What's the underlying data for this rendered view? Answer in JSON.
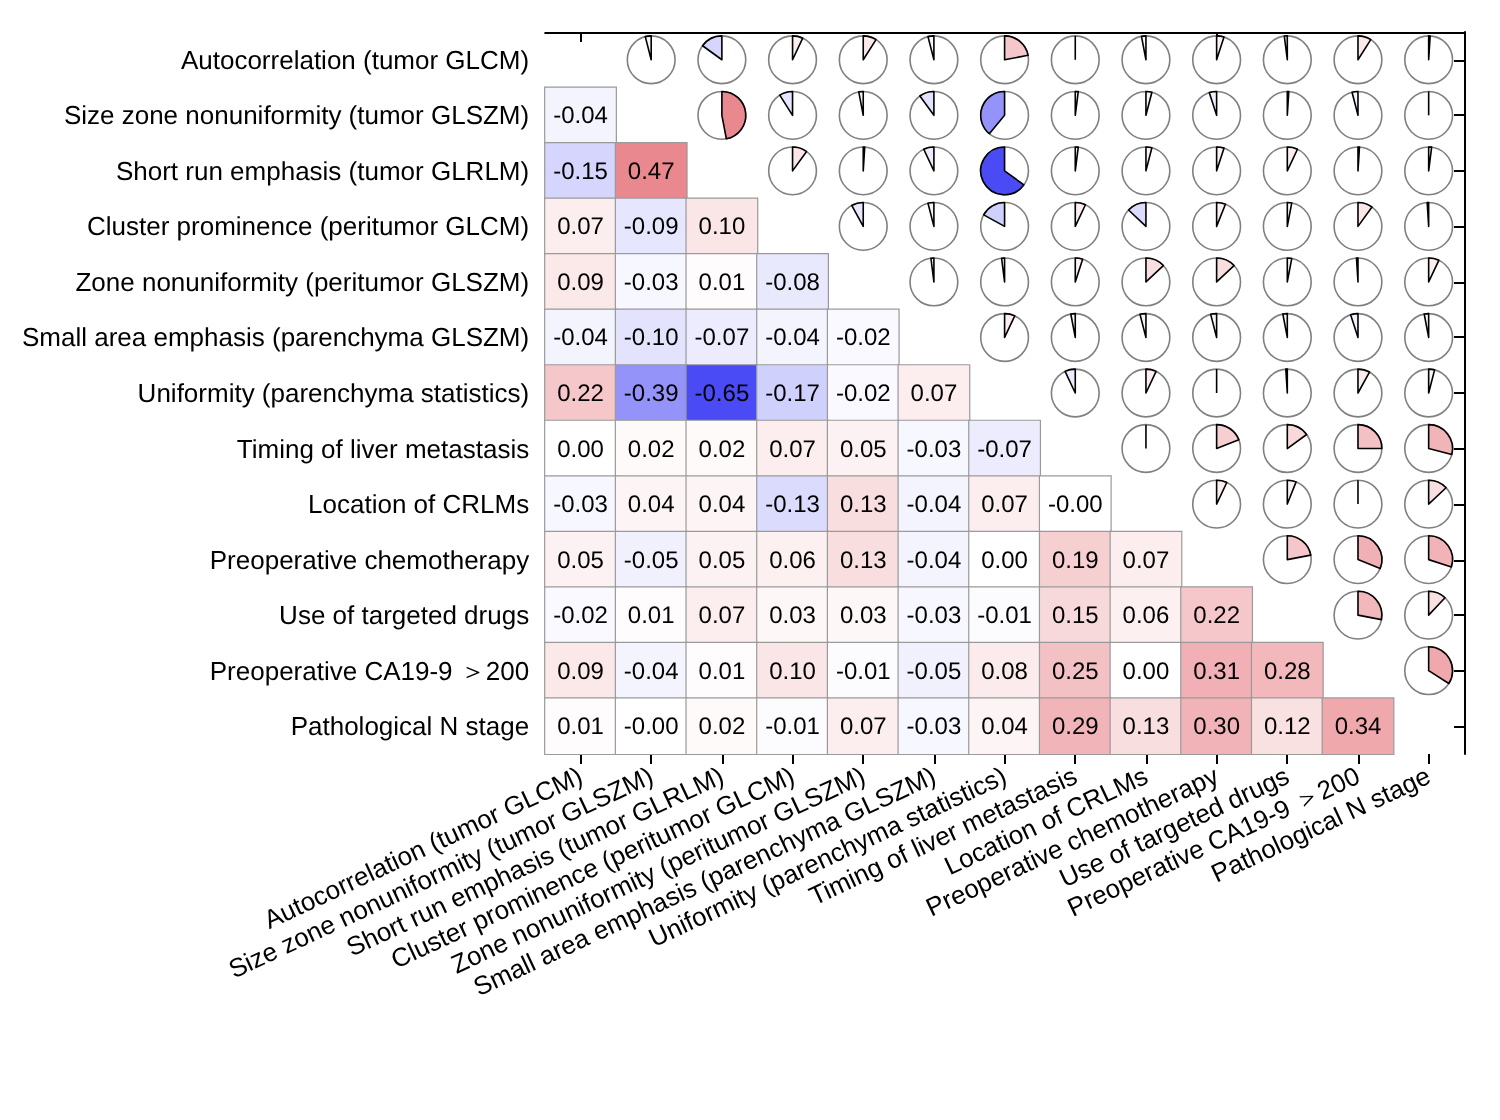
{
  "chart_data": {
    "type": "heatmap",
    "categories": [
      "Autocorrelation (tumor GLCM)",
      "Size zone nonuniformity (tumor GLSZM)",
      "Short run emphasis (tumor GLRLM)",
      "Cluster prominence (peritumor GLCM)",
      "Zone nonuniformity (peritumor GLSZM)",
      "Small area emphasis (parenchyma GLSZM)",
      "Uniformity (parenchyma statistics)",
      "Timing of liver metastasis",
      "Location of CRLMs",
      "Preoperative chemotherapy",
      "Use of targeted drugs",
      "Preoperative CA19-9 ＞200",
      "Pathological N stage"
    ],
    "y_categories": [
      "Autocorrelation (tumor GLCM)",
      "Size zone nonuniformity (tumor GLSZM)",
      "Short run emphasis (tumor GLRLM)",
      "Cluster prominence (peritumor GLCM)",
      "Zone nonuniformity (peritumor GLSZM)",
      "Small area emphasis (parenchyma GLSZM)",
      "Uniformity (parenchyma statistics)",
      "Timing of liver metastasis",
      "Location of CRLMs",
      "Preoperative chemotherapy",
      "Use of targeted drugs",
      "Preoperative CA19-9 ＞200",
      "Pathological N stage"
    ],
    "colors": [
      "#4b4bf5",
      "#ffffff",
      "#e05a63"
    ],
    "cells": [
      [
        null,
        null,
        null,
        null,
        null,
        null,
        null,
        null,
        null,
        null,
        null,
        null,
        null
      ],
      [
        -0.04,
        null,
        null,
        null,
        null,
        null,
        null,
        null,
        null,
        null,
        null,
        null,
        null
      ],
      [
        -0.15,
        0.47,
        null,
        null,
        null,
        null,
        null,
        null,
        null,
        null,
        null,
        null,
        null
      ],
      [
        0.07,
        -0.09,
        0.1,
        null,
        null,
        null,
        null,
        null,
        null,
        null,
        null,
        null,
        null
      ],
      [
        0.09,
        -0.03,
        0.01,
        -0.08,
        null,
        null,
        null,
        null,
        null,
        null,
        null,
        null,
        null
      ],
      [
        -0.04,
        -0.1,
        -0.07,
        -0.04,
        -0.02,
        null,
        null,
        null,
        null,
        null,
        null,
        null,
        null
      ],
      [
        0.22,
        -0.39,
        -0.65,
        -0.17,
        -0.02,
        0.07,
        null,
        null,
        null,
        null,
        null,
        null,
        null
      ],
      [
        0.0,
        0.02,
        0.02,
        0.07,
        0.05,
        -0.03,
        -0.07,
        null,
        null,
        null,
        null,
        null,
        null
      ],
      [
        -0.03,
        0.04,
        0.04,
        -0.13,
        0.13,
        -0.04,
        0.07,
        0.0,
        null,
        null,
        null,
        null,
        null
      ],
      [
        0.05,
        -0.05,
        0.05,
        0.06,
        0.13,
        -0.04,
        0.0,
        0.19,
        0.07,
        null,
        null,
        null,
        null
      ],
      [
        -0.02,
        0.01,
        0.07,
        0.03,
        0.03,
        -0.03,
        -0.01,
        0.15,
        0.06,
        0.22,
        null,
        null,
        null
      ],
      [
        0.09,
        -0.04,
        0.01,
        0.1,
        -0.01,
        -0.05,
        0.08,
        0.25,
        0.0,
        0.31,
        0.28,
        null,
        null
      ],
      [
        0.01,
        0.0,
        0.02,
        -0.01,
        0.07,
        -0.03,
        0.04,
        0.29,
        0.13,
        0.3,
        0.12,
        0.34,
        null
      ]
    ],
    "cell_labels": [
      [
        null,
        null,
        null,
        null,
        null,
        null,
        null,
        null,
        null,
        null,
        null,
        null,
        null
      ],
      [
        "-0.04",
        null,
        null,
        null,
        null,
        null,
        null,
        null,
        null,
        null,
        null,
        null,
        null
      ],
      [
        "-0.15",
        "0.47",
        null,
        null,
        null,
        null,
        null,
        null,
        null,
        null,
        null,
        null,
        null
      ],
      [
        "0.07",
        "-0.09",
        "0.10",
        null,
        null,
        null,
        null,
        null,
        null,
        null,
        null,
        null,
        null
      ],
      [
        "0.09",
        "-0.03",
        "0.01",
        "-0.08",
        null,
        null,
        null,
        null,
        null,
        null,
        null,
        null,
        null
      ],
      [
        "-0.04",
        "-0.10",
        "-0.07",
        "-0.04",
        "-0.02",
        null,
        null,
        null,
        null,
        null,
        null,
        null,
        null
      ],
      [
        "0.22",
        "-0.39",
        "-0.65",
        "-0.17",
        "-0.02",
        "0.07",
        null,
        null,
        null,
        null,
        null,
        null,
        null
      ],
      [
        "0.00",
        "0.02",
        "0.02",
        "0.07",
        "0.05",
        "-0.03",
        "-0.07",
        null,
        null,
        null,
        null,
        null,
        null
      ],
      [
        "-0.03",
        "0.04",
        "0.04",
        "-0.13",
        "0.13",
        "-0.04",
        "0.07",
        "-0.00",
        null,
        null,
        null,
        null,
        null
      ],
      [
        "0.05",
        "-0.05",
        "0.05",
        "0.06",
        "0.13",
        "-0.04",
        "0.00",
        "0.19",
        "0.07",
        null,
        null,
        null,
        null
      ],
      [
        "-0.02",
        "0.01",
        "0.07",
        "0.03",
        "0.03",
        "-0.03",
        "-0.01",
        "0.15",
        "0.06",
        "0.22",
        null,
        null,
        null
      ],
      [
        "0.09",
        "-0.04",
        "0.01",
        "0.10",
        "-0.01",
        "-0.05",
        "0.08",
        "0.25",
        "0.00",
        "0.31",
        "0.28",
        null,
        null
      ],
      [
        "0.01",
        "-0.00",
        "0.02",
        "-0.01",
        "0.07",
        "-0.03",
        "0.04",
        "0.29",
        "0.13",
        "0.30",
        "0.12",
        "0.34",
        null
      ]
    ]
  }
}
